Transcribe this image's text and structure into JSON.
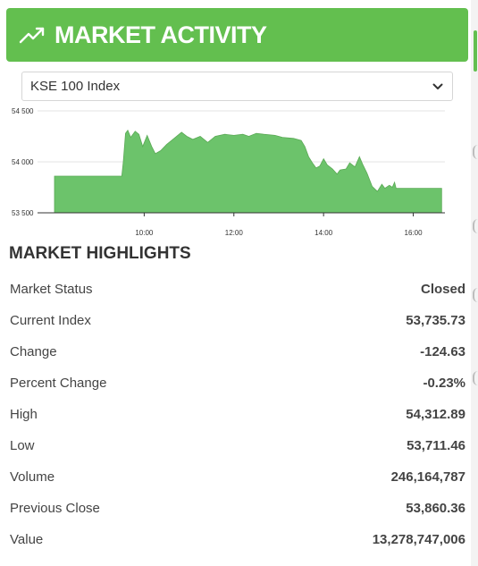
{
  "header": {
    "title": "MARKET ACTIVITY",
    "icon": "trend-up-icon",
    "color": "#63bf4f"
  },
  "index_select": {
    "value": "KSE 100 Index"
  },
  "chart_data": {
    "type": "area",
    "y_ticks": [
      "54 500",
      "54 000",
      "53 500"
    ],
    "x_ticks": [
      "10:00",
      "12:00",
      "14:00",
      "16:00"
    ],
    "ylim": [
      53500,
      54500
    ],
    "xlim": [
      "08:00",
      "16:40"
    ],
    "grid": true,
    "color": "#6cc36b",
    "points": [
      [
        "08:00",
        53860
      ],
      [
        "09:30",
        53860
      ],
      [
        "09:32",
        54000
      ],
      [
        "09:35",
        54280
      ],
      [
        "09:38",
        54310
      ],
      [
        "09:42",
        54240
      ],
      [
        "09:48",
        54300
      ],
      [
        "09:53",
        54270
      ],
      [
        "09:58",
        54150
      ],
      [
        "10:04",
        54260
      ],
      [
        "10:10",
        54150
      ],
      [
        "10:15",
        54080
      ],
      [
        "10:22",
        54110
      ],
      [
        "10:30",
        54170
      ],
      [
        "10:40",
        54230
      ],
      [
        "10:50",
        54290
      ],
      [
        "10:57",
        54250
      ],
      [
        "11:05",
        54220
      ],
      [
        "11:15",
        54250
      ],
      [
        "11:25",
        54190
      ],
      [
        "11:35",
        54250
      ],
      [
        "11:48",
        54270
      ],
      [
        "12:00",
        54260
      ],
      [
        "12:12",
        54270
      ],
      [
        "12:20",
        54250
      ],
      [
        "12:30",
        54280
      ],
      [
        "12:40",
        54270
      ],
      [
        "12:55",
        54260
      ],
      [
        "13:05",
        54240
      ],
      [
        "13:20",
        54230
      ],
      [
        "13:30",
        54210
      ],
      [
        "13:35",
        54150
      ],
      [
        "13:40",
        54050
      ],
      [
        "13:45",
        53990
      ],
      [
        "13:50",
        53940
      ],
      [
        "13:55",
        53960
      ],
      [
        "14:00",
        54030
      ],
      [
        "14:05",
        53970
      ],
      [
        "14:12",
        53930
      ],
      [
        "14:18",
        53880
      ],
      [
        "14:22",
        53920
      ],
      [
        "14:30",
        53930
      ],
      [
        "14:35",
        53990
      ],
      [
        "14:42",
        53950
      ],
      [
        "14:48",
        54050
      ],
      [
        "14:52",
        53980
      ],
      [
        "14:58",
        53890
      ],
      [
        "15:05",
        53760
      ],
      [
        "15:12",
        53710
      ],
      [
        "15:18",
        53780
      ],
      [
        "15:22",
        53740
      ],
      [
        "15:28",
        53770
      ],
      [
        "15:32",
        53750
      ],
      [
        "15:35",
        53800
      ],
      [
        "15:37",
        53740
      ],
      [
        "15:40",
        53740
      ],
      [
        "16:38",
        53740
      ]
    ]
  },
  "highlights": {
    "title": "MARKET HIGHLIGHTS",
    "rows": [
      {
        "label": "Market Status",
        "value": "Closed"
      },
      {
        "label": "Current Index",
        "value": "53,735.73"
      },
      {
        "label": "Change",
        "value": "-124.63"
      },
      {
        "label": "Percent Change",
        "value": "-0.23%"
      },
      {
        "label": "High",
        "value": "54,312.89"
      },
      {
        "label": "Low",
        "value": "53,711.46"
      },
      {
        "label": "Volume",
        "value": "246,164,787"
      },
      {
        "label": "Previous Close",
        "value": "53,860.36"
      },
      {
        "label": "Value",
        "value": "13,278,747,006"
      }
    ]
  }
}
